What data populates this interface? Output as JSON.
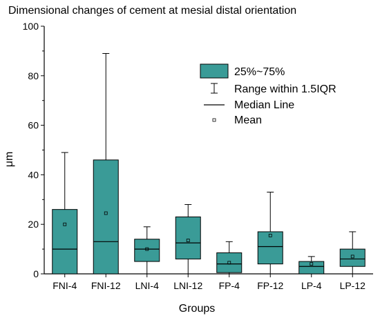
{
  "chart_data": {
    "type": "box",
    "title": "Dimensional changes of cement at mesial distal orientation",
    "xlabel": "Groups",
    "ylabel": "μm",
    "ylim": [
      0,
      100
    ],
    "y_ticks": [
      0,
      20,
      40,
      60,
      80,
      100
    ],
    "categories": [
      "FNI-4",
      "FNI-12",
      "LNI-4",
      "LNI-12",
      "FP-4",
      "FP-12",
      "LP-4",
      "LP-12"
    ],
    "boxes": [
      {
        "whisker_low": 0,
        "q1": 0,
        "median": 10,
        "q3": 26,
        "whisker_high": 49,
        "mean": 20
      },
      {
        "whisker_low": 0,
        "q1": 0,
        "median": 13,
        "q3": 46,
        "whisker_high": 89,
        "mean": 24.5
      },
      {
        "whisker_low": 0,
        "q1": 5,
        "median": 10,
        "q3": 14,
        "whisker_high": 19,
        "mean": 10
      },
      {
        "whisker_low": 0,
        "q1": 6,
        "median": 12.5,
        "q3": 23,
        "whisker_high": 28,
        "mean": 13.5
      },
      {
        "whisker_low": 0,
        "q1": 0.5,
        "median": 4,
        "q3": 8.5,
        "whisker_high": 13,
        "mean": 4.5
      },
      {
        "whisker_low": 0,
        "q1": 4,
        "median": 11,
        "q3": 17,
        "whisker_high": 33,
        "mean": 15.5
      },
      {
        "whisker_low": 0,
        "q1": 0,
        "median": 3,
        "q3": 5,
        "whisker_high": 7,
        "mean": 4
      },
      {
        "whisker_low": 0,
        "q1": 3,
        "median": 6,
        "q3": 10,
        "whisker_high": 17,
        "mean": 7
      }
    ],
    "legend": {
      "position": "top-right",
      "entries": [
        {
          "key": "box",
          "label": "25%~75%"
        },
        {
          "key": "range",
          "label": "Range within 1.5IQR"
        },
        {
          "key": "median",
          "label": "Median Line"
        },
        {
          "key": "mean",
          "label": "Mean"
        }
      ]
    },
    "colors": {
      "box_fill": "#3a9b97",
      "stroke": "#000000"
    },
    "grid": false
  }
}
